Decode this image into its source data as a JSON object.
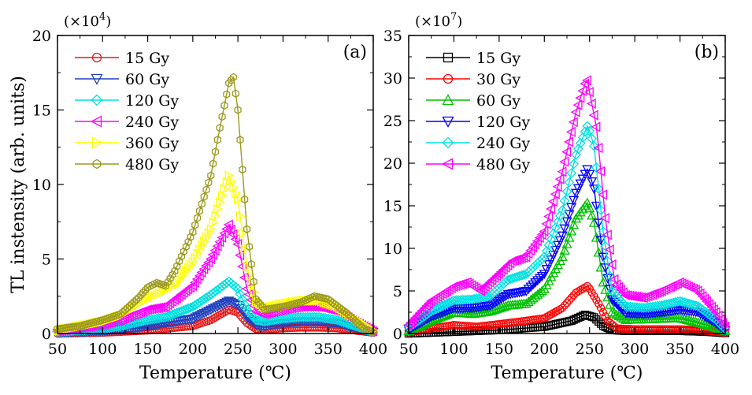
{
  "chart_data": [
    {
      "type": "line",
      "panel_label": "(a)",
      "scale_prefix": "(×10",
      "scale_exponent": "4",
      "scale_suffix": ")",
      "xlabel": "Temperature (℃)",
      "ylabel": "TL instensity (arb. units)",
      "xlim": [
        50,
        400
      ],
      "ylim": [
        0,
        20
      ],
      "xticks": [
        50,
        100,
        150,
        200,
        250,
        300,
        350,
        400
      ],
      "yticks": [
        0,
        5,
        10,
        15,
        20
      ],
      "legend_position": "top-left",
      "series": [
        {
          "name": "15 Gy",
          "color": "#e41a1c",
          "marker": "circle",
          "x": [
            50,
            100,
            150,
            200,
            220,
            240,
            250,
            260,
            270,
            280,
            300,
            320,
            340,
            360,
            380,
            400
          ],
          "y": [
            0.0,
            0.05,
            0.2,
            0.5,
            0.9,
            1.6,
            1.4,
            0.7,
            0.3,
            0.25,
            0.35,
            0.4,
            0.4,
            0.35,
            0.2,
            0.05
          ]
        },
        {
          "name": "60 Gy",
          "color": "#1f3fbf",
          "marker": "triangle-down",
          "x": [
            50,
            100,
            150,
            200,
            220,
            240,
            250,
            260,
            270,
            280,
            300,
            320,
            340,
            360,
            380,
            400
          ],
          "y": [
            0.05,
            0.15,
            0.5,
            1.0,
            1.6,
            2.2,
            1.9,
            1.1,
            0.6,
            0.5,
            0.7,
            0.8,
            0.8,
            0.7,
            0.4,
            0.1
          ]
        },
        {
          "name": "120 Gy",
          "color": "#00e0e0",
          "marker": "diamond",
          "x": [
            50,
            100,
            120,
            150,
            170,
            200,
            220,
            240,
            250,
            260,
            270,
            280,
            300,
            320,
            340,
            360,
            380,
            400
          ],
          "y": [
            0.1,
            0.3,
            0.5,
            0.9,
            1.1,
            1.8,
            2.6,
            3.5,
            3.0,
            1.6,
            0.9,
            0.8,
            1.0,
            1.1,
            1.1,
            0.9,
            0.5,
            0.1
          ]
        },
        {
          "name": "240 Gy",
          "color": "#ff00ff",
          "marker": "triangle-left",
          "x": [
            50,
            100,
            120,
            150,
            170,
            200,
            220,
            240,
            250,
            260,
            270,
            280,
            300,
            320,
            340,
            360,
            380,
            400
          ],
          "y": [
            0.15,
            0.6,
            0.9,
            1.6,
            1.8,
            3.2,
            5.0,
            7.3,
            6.0,
            3.0,
            1.5,
            1.3,
            1.6,
            1.8,
            1.8,
            1.5,
            0.8,
            0.15
          ]
        },
        {
          "name": "360 Gy",
          "color": "#ffff00",
          "marker": "triangle-right",
          "x": [
            50,
            100,
            120,
            140,
            160,
            180,
            200,
            220,
            240,
            250,
            260,
            270,
            280,
            300,
            320,
            340,
            360,
            380,
            400
          ],
          "y": [
            0.2,
            0.8,
            1.2,
            2.0,
            2.6,
            3.2,
            4.8,
            7.0,
            10.6,
            9.0,
            4.5,
            2.2,
            1.7,
            2.0,
            2.2,
            2.2,
            1.8,
            1.0,
            0.2
          ]
        },
        {
          "name": "480 Gy",
          "color": "#9b9a1e",
          "marker": "hexagon",
          "x": [
            50,
            75,
            100,
            120,
            140,
            150,
            160,
            170,
            180,
            200,
            220,
            230,
            240,
            245,
            250,
            260,
            270,
            280,
            300,
            320,
            335,
            350,
            370,
            390,
            400
          ],
          "y": [
            0.3,
            0.5,
            0.9,
            1.3,
            2.4,
            3.1,
            3.4,
            3.2,
            4.2,
            6.8,
            10.6,
            13.8,
            16.8,
            17.2,
            15.0,
            7.0,
            2.3,
            1.6,
            1.8,
            2.1,
            2.5,
            2.3,
            1.4,
            0.3,
            0.1
          ]
        }
      ]
    },
    {
      "type": "line",
      "panel_label": "(b)",
      "scale_prefix": "(×10",
      "scale_exponent": "7",
      "scale_suffix": ")",
      "xlabel": "Temperature (℃)",
      "ylabel": "",
      "xlim": [
        50,
        400
      ],
      "ylim": [
        0,
        35
      ],
      "xticks": [
        50,
        100,
        150,
        200,
        250,
        300,
        350,
        400
      ],
      "yticks": [
        0,
        5,
        10,
        15,
        20,
        25,
        30,
        35
      ],
      "legend_position": "top-left",
      "series": [
        {
          "name": "15 Gy",
          "color": "#000000",
          "marker": "square",
          "x": [
            50,
            100,
            150,
            200,
            230,
            245,
            255,
            265,
            275,
            290,
            320,
            350,
            380,
            400
          ],
          "y": [
            0.0,
            0.2,
            0.4,
            0.8,
            1.5,
            2.2,
            1.9,
            0.9,
            0.4,
            0.3,
            0.3,
            0.3,
            0.2,
            0.05
          ]
        },
        {
          "name": "30 Gy",
          "color": "#ff0000",
          "marker": "circle",
          "x": [
            50,
            75,
            100,
            125,
            150,
            180,
            200,
            220,
            235,
            248,
            260,
            270,
            280,
            300,
            320,
            350,
            380,
            400
          ],
          "y": [
            0.1,
            0.6,
            1.0,
            0.8,
            1.1,
            1.5,
            1.8,
            3.0,
            4.8,
            5.6,
            3.5,
            1.5,
            0.6,
            0.5,
            0.5,
            0.5,
            0.3,
            0.1
          ]
        },
        {
          "name": "60 Gy",
          "color": "#00c000",
          "marker": "triangle-up",
          "x": [
            50,
            75,
            100,
            120,
            140,
            160,
            180,
            200,
            220,
            235,
            248,
            255,
            265,
            275,
            290,
            320,
            350,
            380,
            400
          ],
          "y": [
            0.3,
            1.5,
            2.5,
            2.3,
            2.6,
            3.3,
            3.5,
            5.2,
            9.0,
            13.5,
            15.4,
            13.0,
            6.0,
            2.5,
            1.6,
            1.7,
            1.8,
            1.0,
            0.3
          ]
        },
        {
          "name": "120 Gy",
          "color": "#0000ff",
          "marker": "triangle-down",
          "x": [
            50,
            75,
            100,
            120,
            140,
            160,
            180,
            200,
            220,
            235,
            248,
            255,
            265,
            275,
            290,
            310,
            330,
            350,
            370,
            390,
            400
          ],
          "y": [
            0.5,
            2.0,
            3.0,
            3.0,
            3.3,
            4.6,
            5.0,
            7.0,
            11.5,
            16.5,
            19.4,
            17.0,
            9.0,
            4.0,
            2.4,
            2.3,
            2.5,
            2.8,
            2.5,
            1.2,
            0.4
          ]
        },
        {
          "name": "240 Gy",
          "color": "#00e0e0",
          "marker": "diamond",
          "x": [
            50,
            75,
            100,
            120,
            140,
            160,
            180,
            200,
            220,
            235,
            248,
            255,
            265,
            275,
            290,
            310,
            330,
            350,
            370,
            390,
            400
          ],
          "y": [
            0.7,
            2.6,
            3.9,
            4.0,
            4.4,
            6.3,
            7.0,
            9.0,
            14.5,
            21.0,
            24.5,
            22.0,
            12.0,
            5.0,
            3.2,
            3.0,
            3.3,
            3.8,
            3.2,
            1.6,
            0.5
          ]
        },
        {
          "name": "480 Gy",
          "color": "#ff00ff",
          "marker": "triangle-left",
          "x": [
            50,
            75,
            100,
            115,
            130,
            145,
            165,
            180,
            200,
            220,
            235,
            247,
            258,
            268,
            278,
            290,
            310,
            330,
            350,
            370,
            390,
            400
          ],
          "y": [
            1.0,
            3.8,
            5.5,
            6.0,
            5.0,
            6.5,
            8.5,
            9.0,
            12.0,
            19.0,
            26.0,
            30.0,
            24.0,
            13.0,
            6.0,
            4.5,
            4.2,
            5.0,
            6.0,
            5.0,
            2.5,
            0.8
          ]
        }
      ]
    }
  ]
}
